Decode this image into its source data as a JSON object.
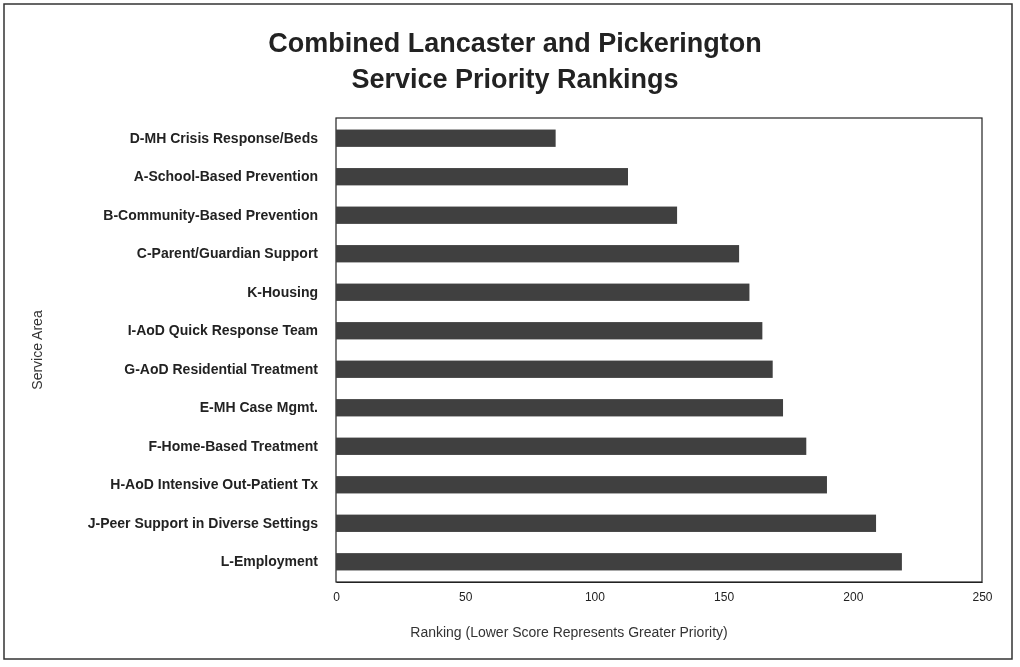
{
  "chart_data": {
    "type": "bar",
    "orientation": "horizontal",
    "title": "Combined Lancaster and Pickerington\nService Priority Rankings",
    "xlabel": "Ranking (Lower Score Represents Greater Priority)",
    "ylabel": "Service Area",
    "categories": [
      "D-MH Crisis Response/Beds",
      "A-School-Based Prevention",
      "B-Community-Based Prevention",
      "C-Parent/Guardian Support",
      "K-Housing",
      "I-AoD Quick Response Team",
      "G-AoD Residential Treatment",
      "E-MH Case Mgmt.",
      "F-Home-Based Treatment",
      "H-AoD Intensive Out-Patient Tx",
      "J-Peer Support in Diverse Settings",
      "L-Employment"
    ],
    "values": [
      85,
      113,
      132,
      156,
      160,
      165,
      169,
      173,
      182,
      190,
      209,
      219
    ],
    "color": "#404040",
    "xlim": [
      0,
      250
    ],
    "xticks": [
      0,
      50,
      100,
      150,
      200,
      250
    ]
  }
}
